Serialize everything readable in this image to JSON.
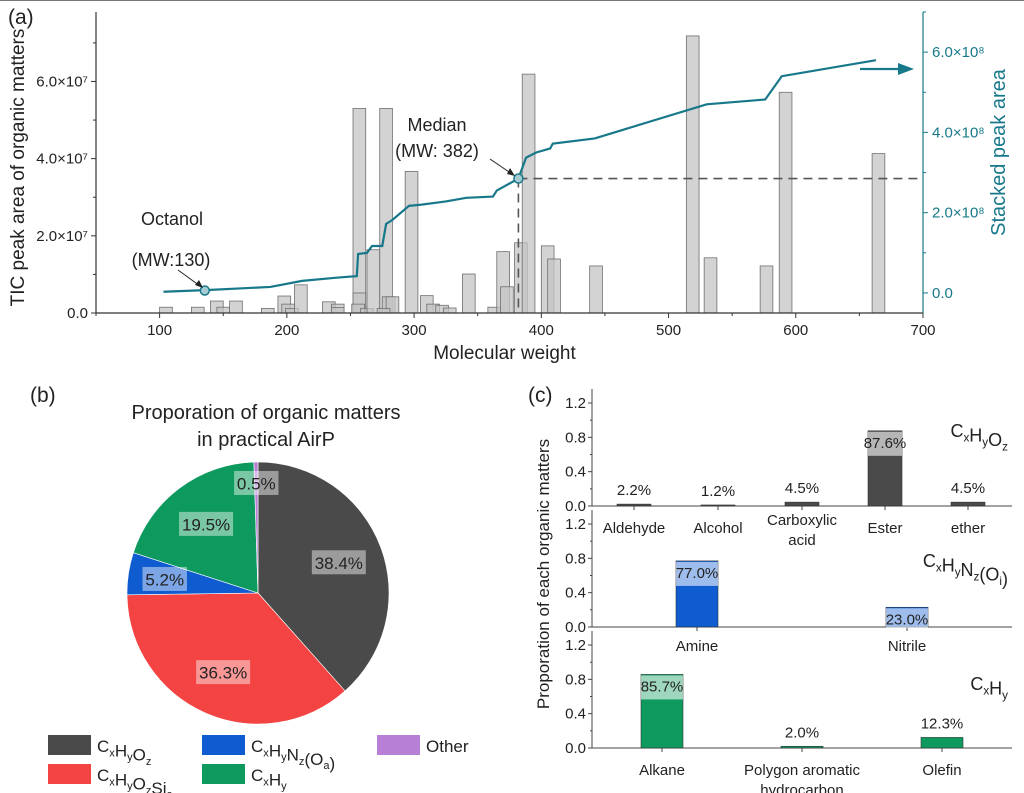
{
  "colors": {
    "teal": "#17788a",
    "bar_fill": "#c4c4c4",
    "bar_stroke": "#6f6f6f",
    "CxHyOz": "#4a4a4a",
    "CxHyOzSia": "#f44343",
    "CxHyNzOa": "#0f5bd0",
    "CxHy": "#0e9a5e",
    "Other": "#b77fd6"
  },
  "panel_a": {
    "label": "(a)",
    "xlabel": "Molecular weight",
    "ylabel_left": "TIC peak area of organic matters",
    "ylabel_right": "Stacked peak area",
    "xlim": [
      50,
      700
    ],
    "ylim_left": [
      0,
      78000000.0
    ],
    "ylim_right": [
      -50000000.0,
      700000000.0
    ],
    "x_ticks": [
      "100",
      "200",
      "300",
      "400",
      "500",
      "600",
      "700"
    ],
    "y_left_ticks": [
      "0.0",
      "2.0×10⁷",
      "4.0×10⁷",
      "6.0×10⁷"
    ],
    "y_right_ticks": [
      "0.0",
      "2.0×10⁸",
      "4.0×10⁸",
      "6.0×10⁸"
    ],
    "annotations": {
      "octanol": [
        "Octanol",
        "(MW:130)"
      ],
      "median": [
        "Median",
        "(MW: 382)"
      ]
    },
    "octanol_point": {
      "mw": 130,
      "stacked": 6000000
    },
    "median_point": {
      "mw": 382,
      "stacked": 285000000
    },
    "bars": [
      {
        "mw": 105,
        "value": 1500000.0
      },
      {
        "mw": 130,
        "value": 1500000.0
      },
      {
        "mw": 145,
        "value": 3100000.0
      },
      {
        "mw": 150,
        "value": 1500000.0
      },
      {
        "mw": 160,
        "value": 3100000.0
      },
      {
        "mw": 185,
        "value": 1200000.0
      },
      {
        "mw": 198,
        "value": 4400000.0
      },
      {
        "mw": 201,
        "value": 2300000.0
      },
      {
        "mw": 204,
        "value": 1200000.0
      },
      {
        "mw": 211,
        "value": 7300000.0
      },
      {
        "mw": 233,
        "value": 2900000.0
      },
      {
        "mw": 240,
        "value": 2300000.0
      },
      {
        "mw": 240,
        "value": 1400000.0
      },
      {
        "mw": 257,
        "value": 53000000.0
      },
      {
        "mw": 257,
        "value": 5200000.0
      },
      {
        "mw": 256,
        "value": 2300000.0
      },
      {
        "mw": 263,
        "value": 1200000.0
      },
      {
        "mw": 268,
        "value": 16400000.0
      },
      {
        "mw": 278,
        "value": 53000000.0
      },
      {
        "mw": 280,
        "value": 4200000.0
      },
      {
        "mw": 283,
        "value": 4200000.0
      },
      {
        "mw": 276,
        "value": 1200000.0
      },
      {
        "mw": 298,
        "value": 36700000.0
      },
      {
        "mw": 310,
        "value": 4500000.0
      },
      {
        "mw": 315,
        "value": 2300000.0
      },
      {
        "mw": 322,
        "value": 2000000.0
      },
      {
        "mw": 328,
        "value": 1300000.0
      },
      {
        "mw": 343,
        "value": 10100000.0
      },
      {
        "mw": 363,
        "value": 1500000.0
      },
      {
        "mw": 370,
        "value": 15900000.0
      },
      {
        "mw": 373,
        "value": 6800000.0
      },
      {
        "mw": 384,
        "value": 18200000.0
      },
      {
        "mw": 390,
        "value": 61900000.0
      },
      {
        "mw": 405,
        "value": 17400000.0
      },
      {
        "mw": 410,
        "value": 14000000.0
      },
      {
        "mw": 443,
        "value": 12200000.0
      },
      {
        "mw": 519,
        "value": 71800000.0
      },
      {
        "mw": 533,
        "value": 14300000.0
      },
      {
        "mw": 577,
        "value": 12200000.0
      },
      {
        "mw": 592,
        "value": 57200000.0
      },
      {
        "mw": 665,
        "value": 41300000.0
      }
    ],
    "stacked_line": [
      [
        103,
        3000000.0
      ],
      [
        136,
        7000000.0
      ],
      [
        187,
        15000000.0
      ],
      [
        212,
        30000000.0
      ],
      [
        239,
        38000000.0
      ],
      [
        255,
        42000000.0
      ],
      [
        256,
        97000000.0
      ],
      [
        263,
        100000000.0
      ],
      [
        267,
        117000000.0
      ],
      [
        275,
        117000000.0
      ],
      [
        278,
        172000000.0
      ],
      [
        283,
        182000000.0
      ],
      [
        296,
        217000000.0
      ],
      [
        306,
        220000000.0
      ],
      [
        325,
        228000000.0
      ],
      [
        341,
        237000000.0
      ],
      [
        362,
        240000000.0
      ],
      [
        365,
        255000000.0
      ],
      [
        382,
        285000000.0
      ],
      [
        388,
        337000000.0
      ],
      [
        396,
        350000000.0
      ],
      [
        407,
        360000000.0
      ],
      [
        409,
        372000000.0
      ],
      [
        442,
        385000000.0
      ],
      [
        530,
        470000000.0
      ],
      [
        576,
        482000000.0
      ],
      [
        589,
        540000000.0
      ],
      [
        663,
        580000000.0
      ]
    ]
  },
  "panel_b": {
    "label": "(b)",
    "title": [
      "Proporation of organic matters",
      "in practical AirP"
    ],
    "slices": [
      {
        "key": "CxHyOz",
        "value": 38.4,
        "label": "38.4%"
      },
      {
        "key": "CxHyOzSia",
        "value": 36.3,
        "label": "36.3%"
      },
      {
        "key": "CxHyNzOa",
        "value": 5.2,
        "label": "5.2%"
      },
      {
        "key": "CxHy",
        "value": 19.5,
        "label": "19.5%"
      },
      {
        "key": "Other",
        "value": 0.5,
        "label": "0.5%"
      }
    ],
    "legend": [
      {
        "key": "CxHyOz",
        "parts": [
          [
            "C",
            "x"
          ],
          [
            "H",
            "y"
          ],
          [
            "O",
            "z"
          ]
        ]
      },
      {
        "key": "CxHyNzOa",
        "parts": [
          [
            "C",
            "x"
          ],
          [
            "H",
            "y"
          ],
          [
            "N",
            "z"
          ],
          [
            "(O",
            "a"
          ],
          [
            ")",
            ""
          ]
        ]
      },
      {
        "key": "Other",
        "parts": [
          [
            "Other",
            ""
          ]
        ]
      },
      {
        "key": "CxHyOzSia",
        "parts": [
          [
            "C",
            "x"
          ],
          [
            "H",
            "y"
          ],
          [
            "O",
            "z"
          ],
          [
            "Si",
            "a"
          ]
        ]
      },
      {
        "key": "CxHy",
        "parts": [
          [
            "C",
            "x"
          ],
          [
            "H",
            "y"
          ]
        ]
      }
    ]
  },
  "panel_c": {
    "label": "(c)",
    "ylabel": "Proporation of each organic matters",
    "ylim": [
      0,
      1.2
    ],
    "y_ticks": [
      "0.0",
      "0.4",
      "0.8",
      "1.2"
    ],
    "subplots": [
      {
        "key": "CxHyOz",
        "formula": [
          [
            "C",
            "x"
          ],
          [
            "H",
            "y"
          ],
          [
            "O",
            "z"
          ]
        ],
        "categories": [
          [
            "Aldehyde"
          ],
          [
            "Alcohol"
          ],
          [
            "Carboxylic",
            "acid"
          ],
          [
            "Ester"
          ],
          [
            "ether"
          ]
        ],
        "values": [
          0.022,
          0.012,
          0.045,
          0.876,
          0.045
        ],
        "labels": [
          "2.2%",
          "1.2%",
          "4.5%",
          "87.6%",
          "4.5%"
        ]
      },
      {
        "key": "CxHyNzOa",
        "formula": [
          [
            "C",
            "x"
          ],
          [
            "H",
            "y"
          ],
          [
            "N",
            "z"
          ],
          [
            "(O",
            "i"
          ],
          [
            ")",
            ""
          ]
        ],
        "categories": [
          [
            "Amine"
          ],
          [
            "Nitrile"
          ]
        ],
        "values": [
          0.77,
          0.23
        ],
        "labels": [
          "77.0%",
          "23.0%"
        ]
      },
      {
        "key": "CxHy",
        "formula": [
          [
            "C",
            "x"
          ],
          [
            "H",
            "y"
          ]
        ],
        "categories": [
          [
            "Alkane"
          ],
          [
            "Polygon aromatic",
            "hydrocarbon"
          ],
          [
            "Olefin"
          ]
        ],
        "values": [
          0.857,
          0.02,
          0.123
        ],
        "labels": [
          "85.7%",
          "2.0%",
          "12.3%"
        ]
      }
    ]
  }
}
